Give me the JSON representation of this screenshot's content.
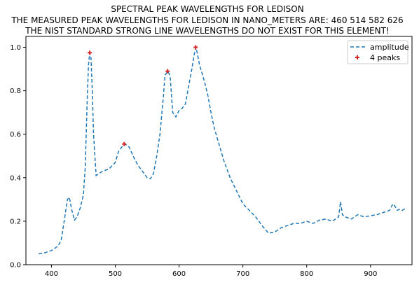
{
  "chart_data": {
    "type": "line",
    "title_lines": [
      "SPECTRAL PEAK WAVELENGTHS FOR LEDISON",
      "THE MEASURED PEAK WAVELENGTHS FOR LEDISON IN NANO_METERS ARE: 460 514 582 626",
      "THE NIST STANDARD STRONG LINE WAVELENGTHS DO NOT EXIST FOR THIS ELEMENT!"
    ],
    "xlabel": "",
    "ylabel": "",
    "xlim": [
      360,
      965
    ],
    "ylim": [
      0,
      1.05
    ],
    "x_ticks": [
      400,
      500,
      600,
      700,
      800,
      900
    ],
    "y_ticks": [
      0.0,
      0.2,
      0.4,
      0.6,
      0.8,
      1.0
    ],
    "y_tick_labels": [
      "0.0",
      "0.2",
      "0.4",
      "0.6",
      "0.8",
      "1.0"
    ],
    "grid": false,
    "legend_position": "top-right",
    "series": [
      {
        "name": "amplitude",
        "style": "dashed",
        "color": "#1f77b4",
        "x": [
          380,
          390,
          400,
          405,
          410,
          415,
          420,
          425,
          428,
          432,
          436,
          440,
          445,
          450,
          453,
          456,
          458,
          460,
          462,
          464,
          466,
          470,
          475,
          480,
          490,
          500,
          505,
          510,
          514,
          518,
          522,
          528,
          535,
          540,
          545,
          550,
          555,
          560,
          565,
          570,
          575,
          578,
          582,
          586,
          590,
          595,
          600,
          605,
          610,
          615,
          620,
          624,
          626,
          628,
          632,
          636,
          640,
          645,
          650,
          655,
          660,
          665,
          670,
          675,
          680,
          685,
          690,
          700,
          710,
          720,
          730,
          740,
          750,
          760,
          770,
          780,
          790,
          800,
          810,
          820,
          830,
          840,
          850,
          853,
          856,
          860,
          870,
          880,
          890,
          900,
          910,
          920,
          930,
          935,
          938,
          942,
          945,
          950,
          955
        ],
        "y": [
          0.05,
          0.055,
          0.065,
          0.075,
          0.085,
          0.11,
          0.2,
          0.3,
          0.31,
          0.25,
          0.205,
          0.22,
          0.26,
          0.32,
          0.45,
          0.75,
          0.92,
          0.975,
          0.95,
          0.8,
          0.6,
          0.41,
          0.42,
          0.43,
          0.44,
          0.47,
          0.52,
          0.54,
          0.555,
          0.55,
          0.54,
          0.5,
          0.46,
          0.44,
          0.42,
          0.4,
          0.395,
          0.42,
          0.5,
          0.6,
          0.76,
          0.87,
          0.89,
          0.87,
          0.7,
          0.68,
          0.71,
          0.72,
          0.74,
          0.82,
          0.9,
          0.97,
          1.0,
          0.98,
          0.92,
          0.88,
          0.84,
          0.78,
          0.7,
          0.63,
          0.58,
          0.53,
          0.48,
          0.44,
          0.4,
          0.37,
          0.34,
          0.28,
          0.25,
          0.22,
          0.18,
          0.145,
          0.15,
          0.17,
          0.18,
          0.19,
          0.19,
          0.2,
          0.19,
          0.205,
          0.21,
          0.2,
          0.22,
          0.29,
          0.23,
          0.22,
          0.21,
          0.23,
          0.22,
          0.225,
          0.23,
          0.24,
          0.25,
          0.28,
          0.27,
          0.25,
          0.255,
          0.25,
          0.26
        ]
      },
      {
        "name": "4 peaks",
        "style": "markers",
        "marker": "plus",
        "color": "#d62728",
        "x": [
          460,
          514,
          582,
          626
        ],
        "y": [
          0.975,
          0.555,
          0.89,
          1.0
        ]
      }
    ]
  }
}
